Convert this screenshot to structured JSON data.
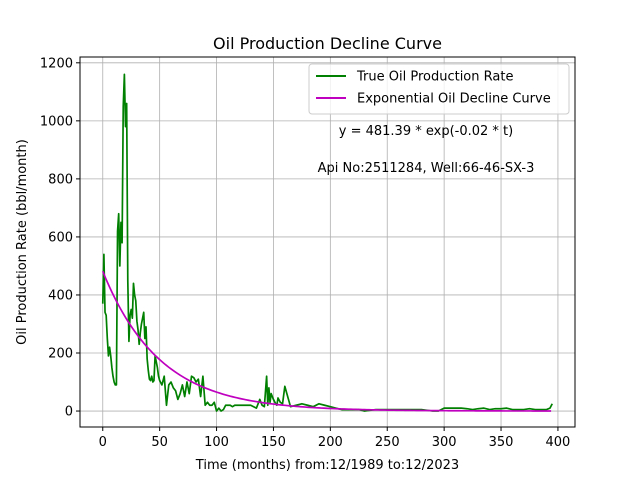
{
  "chart_data": {
    "type": "line",
    "title": "Oil Production Decline Curve",
    "xlabel": "Time (months) from:12/1989 to:12/2023",
    "ylabel": "Oil Production Rate (bbl/month)",
    "xlim": [
      -20,
      415
    ],
    "ylim": [
      -55,
      1220
    ],
    "xticks": [
      0,
      50,
      100,
      150,
      200,
      250,
      300,
      350,
      400
    ],
    "yticks": [
      0,
      200,
      400,
      600,
      800,
      1000,
      1200
    ],
    "grid": true,
    "legend": {
      "placement": "top-right",
      "entries": [
        "True Oil Production Rate",
        "Exponential Oil Decline Curve"
      ]
    },
    "annotations": [
      "y = 481.39 * exp(-0.02 * t)",
      "Api No:2511284, Well:66-46-SX-3"
    ],
    "series": [
      {
        "name": "True Oil Production Rate",
        "color": "#008000",
        "x": [
          0,
          1,
          2,
          3,
          4,
          5,
          6,
          7,
          8,
          9,
          10,
          11,
          12,
          13,
          14,
          15,
          16,
          17,
          18,
          19,
          20,
          21,
          22,
          23,
          24,
          25,
          26,
          27,
          28,
          29,
          30,
          31,
          32,
          33,
          34,
          35,
          36,
          37,
          38,
          39,
          40,
          41,
          42,
          43,
          44,
          45,
          46,
          47,
          48,
          49,
          50,
          52,
          54,
          56,
          58,
          60,
          62,
          64,
          66,
          68,
          70,
          72,
          74,
          76,
          78,
          80,
          82,
          84,
          86,
          88,
          90,
          92,
          94,
          96,
          98,
          100,
          102,
          104,
          106,
          108,
          110,
          112,
          114,
          116,
          118,
          120,
          125,
          130,
          135,
          138,
          140,
          142,
          144,
          145,
          146,
          147,
          148,
          150,
          152,
          153,
          154,
          156,
          158,
          160,
          165,
          170,
          175,
          180,
          185,
          190,
          195,
          200,
          205,
          210,
          215,
          220,
          225,
          230,
          240,
          250,
          260,
          270,
          280,
          290,
          295,
          300,
          305,
          310,
          315,
          320,
          325,
          330,
          335,
          340,
          345,
          350,
          355,
          360,
          365,
          370,
          375,
          380,
          385,
          390,
          393,
          395
        ],
        "values": [
          370,
          540,
          340,
          330,
          250,
          190,
          220,
          190,
          150,
          120,
          100,
          90,
          90,
          620,
          680,
          500,
          650,
          580,
          1050,
          1160,
          980,
          1060,
          450,
          240,
          330,
          350,
          320,
          440,
          400,
          380,
          310,
          280,
          230,
          270,
          300,
          320,
          340,
          250,
          290,
          180,
          140,
          110,
          105,
          120,
          100,
          105,
          190,
          170,
          150,
          120,
          105,
          90,
          120,
          20,
          90,
          100,
          80,
          70,
          40,
          60,
          90,
          50,
          100,
          60,
          120,
          115,
          100,
          110,
          50,
          120,
          20,
          30,
          20,
          20,
          30,
          0,
          10,
          0,
          5,
          20,
          20,
          20,
          15,
          20,
          20,
          20,
          20,
          20,
          10,
          40,
          20,
          15,
          120,
          20,
          80,
          30,
          60,
          40,
          25,
          20,
          45,
          30,
          25,
          85,
          15,
          20,
          25,
          20,
          15,
          25,
          20,
          15,
          10,
          5,
          5,
          5,
          5,
          0,
          5,
          5,
          5,
          5,
          5,
          0,
          0,
          10,
          10,
          10,
          10,
          8,
          5,
          8,
          10,
          5,
          8,
          8,
          10,
          5,
          5,
          5,
          8,
          5,
          5,
          5,
          10,
          25
        ]
      },
      {
        "name": "Exponential Oil Decline Curve",
        "color": "#bf00bf",
        "model": {
          "a": 481.39,
          "b": -0.02,
          "t_start": 0,
          "t_end": 395
        }
      }
    ]
  }
}
